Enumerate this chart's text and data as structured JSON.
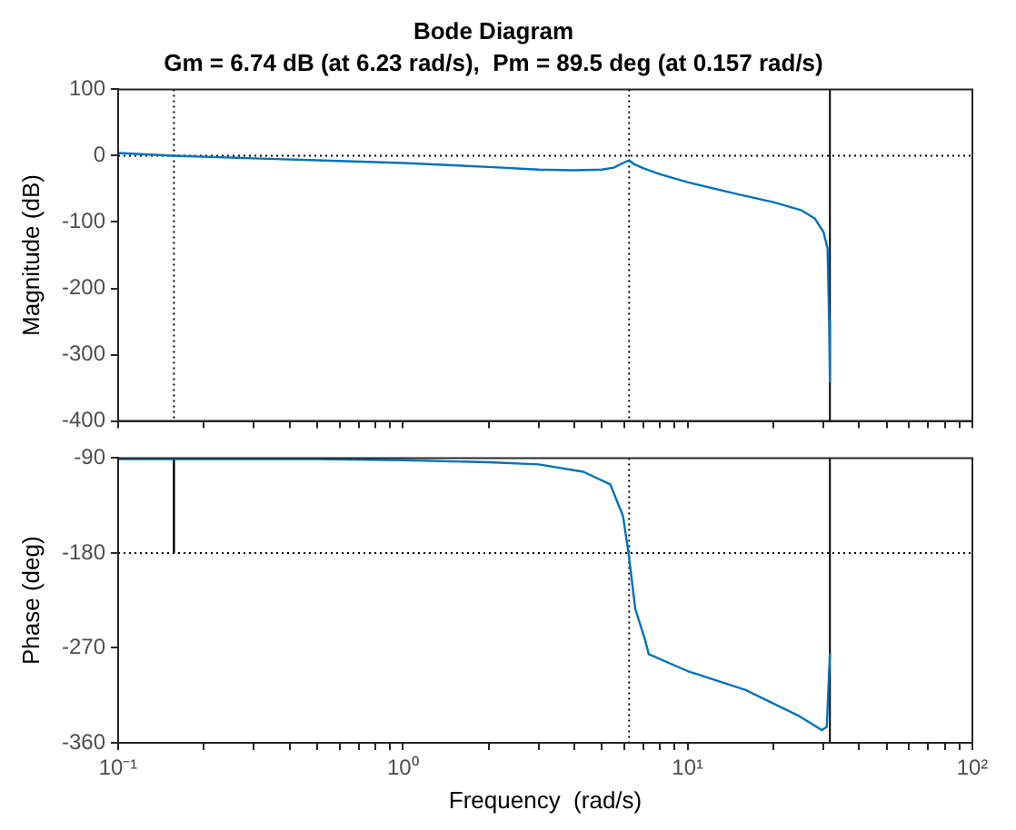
{
  "chart_data": [
    {
      "type": "line",
      "title": "Bode Diagram",
      "subtitle": "Gm = 6.74 dB (at 6.23 rad/s),  Pm = 89.5 deg (at 0.157 rad/s)",
      "ylabel": "Magnitude (dB)",
      "log": "x",
      "grid": false,
      "legend": false,
      "marker": "none",
      "tick_labels": "y",
      "xlim": [
        0.1,
        100
      ],
      "xticks": [
        {
          "value": 0.1,
          "label": null
        },
        {
          "value": 0.2,
          "label": null
        },
        {
          "value": 0.3,
          "label": null
        },
        {
          "value": 0.4,
          "label": null
        },
        {
          "value": 0.5,
          "label": null
        },
        {
          "value": 0.6,
          "label": null
        },
        {
          "value": 0.7,
          "label": null
        },
        {
          "value": 0.8,
          "label": null
        },
        {
          "value": 0.9,
          "label": null
        },
        {
          "value": 1,
          "label": null
        },
        {
          "value": 2,
          "label": null
        },
        {
          "value": 3,
          "label": null
        },
        {
          "value": 4,
          "label": null
        },
        {
          "value": 5,
          "label": null
        },
        {
          "value": 6,
          "label": null
        },
        {
          "value": 7,
          "label": null
        },
        {
          "value": 8,
          "label": null
        },
        {
          "value": 9,
          "label": null
        },
        {
          "value": 10,
          "label": null
        },
        {
          "value": 20,
          "label": null
        },
        {
          "value": 30,
          "label": null
        },
        {
          "value": 40,
          "label": null
        },
        {
          "value": 50,
          "label": null
        },
        {
          "value": 60,
          "label": null
        },
        {
          "value": 70,
          "label": null
        },
        {
          "value": 80,
          "label": null
        },
        {
          "value": 90,
          "label": null
        },
        {
          "value": 100,
          "label": null
        }
      ],
      "ylim": [
        -400,
        100
      ],
      "yticks": [
        -400,
        -300,
        -200,
        -100,
        0,
        100
      ],
      "series": [
        {
          "color": "#0072bd",
          "line_style": "solid",
          "x": [
            0.1,
            0.157,
            0.3,
            0.5,
            1,
            2,
            3,
            4,
            5,
            5.5,
            6,
            6.23,
            6.5,
            7,
            8,
            10,
            15,
            20,
            25,
            28,
            30,
            31,
            31.4,
            31.6
          ],
          "values": [
            4,
            0,
            -4,
            -7,
            -11,
            -17,
            -21,
            -22,
            -21,
            -18,
            -10,
            -7,
            -13,
            -19,
            -28,
            -40,
            -58,
            -70,
            -82,
            -95,
            -115,
            -140,
            -250,
            -340
          ]
        }
      ],
      "ref_lines": [
        {
          "axis": "y",
          "value": 0,
          "color": "#000000",
          "line_style": "dotted"
        },
        {
          "axis": "x",
          "value": 0.157,
          "color": "#000000",
          "line_style": "dotted"
        },
        {
          "axis": "x",
          "value": 6.23,
          "color": "#000000",
          "line_style": "dotted"
        },
        {
          "axis": "x",
          "value": 31.6,
          "color": "#000000",
          "line_style": "solid"
        }
      ]
    },
    {
      "type": "line",
      "xlabel": "Frequency  (rad/s)",
      "ylabel": "Phase (deg)",
      "log": "x",
      "grid": false,
      "legend": false,
      "marker": "none",
      "xlim": [
        0.1,
        100
      ],
      "xticks": [
        {
          "value": 0.1,
          "label": "10⁻¹"
        },
        {
          "value": 0.2,
          "label": null
        },
        {
          "value": 0.3,
          "label": null
        },
        {
          "value": 0.4,
          "label": null
        },
        {
          "value": 0.5,
          "label": null
        },
        {
          "value": 0.6,
          "label": null
        },
        {
          "value": 0.7,
          "label": null
        },
        {
          "value": 0.8,
          "label": null
        },
        {
          "value": 0.9,
          "label": null
        },
        {
          "value": 1,
          "label": "10⁰"
        },
        {
          "value": 2,
          "label": null
        },
        {
          "value": 3,
          "label": null
        },
        {
          "value": 4,
          "label": null
        },
        {
          "value": 5,
          "label": null
        },
        {
          "value": 6,
          "label": null
        },
        {
          "value": 7,
          "label": null
        },
        {
          "value": 8,
          "label": null
        },
        {
          "value": 9,
          "label": null
        },
        {
          "value": 10,
          "label": "10¹"
        },
        {
          "value": 20,
          "label": null
        },
        {
          "value": 30,
          "label": null
        },
        {
          "value": 40,
          "label": null
        },
        {
          "value": 50,
          "label": null
        },
        {
          "value": 60,
          "label": null
        },
        {
          "value": 70,
          "label": null
        },
        {
          "value": 80,
          "label": null
        },
        {
          "value": 90,
          "label": null
        },
        {
          "value": 100,
          "label": "10²"
        }
      ],
      "ylim": [
        -360,
        -90
      ],
      "yticks": [
        -360,
        -270,
        -180,
        -90
      ],
      "series": [
        {
          "color": "#0072bd",
          "line_style": "solid",
          "x": [
            0.1,
            0.157,
            0.5,
            1,
            2,
            3,
            4.3,
            5.35,
            5.93,
            6.2,
            6.55,
            7.1,
            7.3,
            10,
            16,
            24.4,
            29.6,
            30.8,
            31.6
          ],
          "values": [
            -91,
            -91,
            -91,
            -92,
            -94,
            -96,
            -103,
            -115,
            -145,
            -180,
            -233,
            -263,
            -276,
            -292,
            -310,
            -334,
            -348,
            -345,
            -275
          ]
        },
        {
          "color": "#000000",
          "line_style": "solid",
          "x": [
            0.157,
            0.157
          ],
          "values": [
            -180,
            -91
          ]
        }
      ],
      "ref_lines": [
        {
          "axis": "y",
          "value": -180,
          "color": "#000000",
          "line_style": "dotted"
        },
        {
          "axis": "x",
          "value": 6.23,
          "color": "#000000",
          "line_style": "dotted"
        },
        {
          "axis": "x",
          "value": 31.6,
          "color": "#000000",
          "line_style": "solid"
        }
      ]
    }
  ]
}
